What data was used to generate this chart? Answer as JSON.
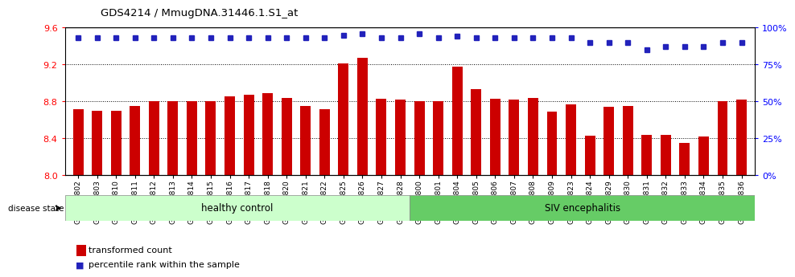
{
  "title": "GDS4214 / MmugDNA.31446.1.S1_at",
  "samples": [
    "GSM347802",
    "GSM347803",
    "GSM347810",
    "GSM347811",
    "GSM347812",
    "GSM347813",
    "GSM347814",
    "GSM347815",
    "GSM347816",
    "GSM347817",
    "GSM347818",
    "GSM347820",
    "GSM347821",
    "GSM347822",
    "GSM347825",
    "GSM347826",
    "GSM347827",
    "GSM347828",
    "GSM347800",
    "GSM347801",
    "GSM347804",
    "GSM347805",
    "GSM347806",
    "GSM347807",
    "GSM347808",
    "GSM347809",
    "GSM347823",
    "GSM347824",
    "GSM347829",
    "GSM347830",
    "GSM347831",
    "GSM347832",
    "GSM347833",
    "GSM347834",
    "GSM347835",
    "GSM347836"
  ],
  "bar_values": [
    8.72,
    8.7,
    8.7,
    8.75,
    8.8,
    8.8,
    8.8,
    8.8,
    8.86,
    8.87,
    8.89,
    8.84,
    8.75,
    8.72,
    9.21,
    9.27,
    8.83,
    8.82,
    8.8,
    8.8,
    9.18,
    8.93,
    8.83,
    8.82,
    8.84,
    8.69,
    8.77,
    8.43,
    8.74,
    8.75,
    8.44,
    8.44,
    8.35,
    8.42,
    8.8,
    8.82
  ],
  "percentile_values": [
    93,
    93,
    93,
    93,
    93,
    93,
    93,
    93,
    93,
    93,
    93,
    93,
    93,
    93,
    95,
    96,
    93,
    93,
    96,
    93,
    94,
    93,
    93,
    93,
    93,
    93,
    93,
    90,
    90,
    90,
    85,
    87,
    87,
    87,
    90,
    90
  ],
  "bar_color": "#cc0000",
  "dot_color": "#2222bb",
  "healthy_count": 18,
  "ylim_left": [
    8.0,
    9.6
  ],
  "ylim_right": [
    0,
    100
  ],
  "yticks_left": [
    8.0,
    8.4,
    8.8,
    9.2,
    9.6
  ],
  "yticks_right": [
    0,
    25,
    50,
    75,
    100
  ],
  "grid_lines": [
    8.4,
    8.8,
    9.2
  ],
  "healthy_label": "healthy control",
  "disease_label": "SIV encephalitis",
  "disease_state_label": "disease state",
  "legend_bar_label": "transformed count",
  "legend_dot_label": "percentile rank within the sample",
  "healthy_color": "#ccffcc",
  "disease_color": "#66cc66",
  "bg_color": "#ffffff"
}
